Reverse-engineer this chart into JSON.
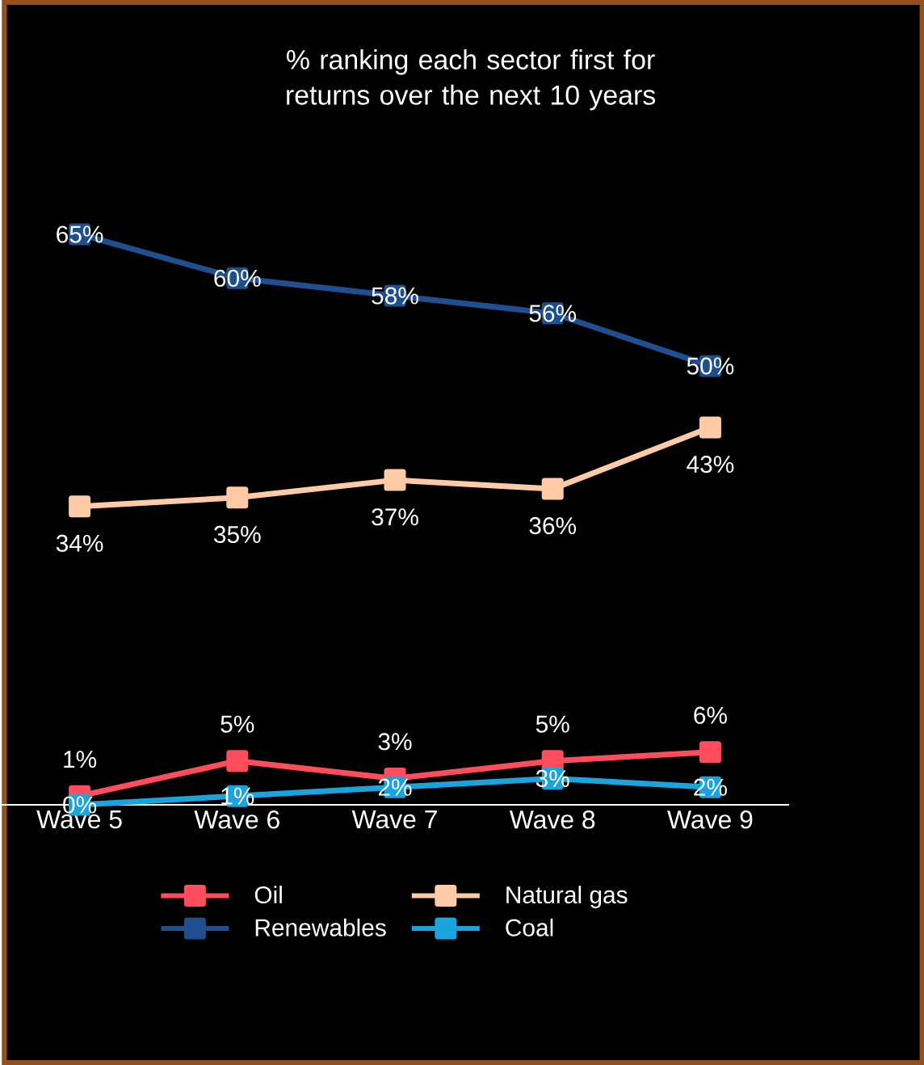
{
  "chart_data": {
    "type": "line",
    "title": "% ranking each sector first for returns over the next 10 years",
    "categories": [
      "Wave 5",
      "Wave 6",
      "Wave 7",
      "Wave 8",
      "Wave 9"
    ],
    "series": [
      {
        "name": "Oil",
        "color": "#ff4d5e",
        "values": [
          1,
          5,
          3,
          5,
          6
        ],
        "value_labels": [
          "1%",
          "5%",
          "3%",
          "5%",
          "6%"
        ]
      },
      {
        "name": "Natural gas",
        "color": "#ffcaa6",
        "values": [
          34,
          35,
          37,
          36,
          43
        ],
        "value_labels": [
          "34%",
          "35%",
          "37%",
          "36%",
          "43%"
        ]
      },
      {
        "name": "Renewables",
        "color": "#1f4f8f",
        "values": [
          65,
          60,
          58,
          56,
          50
        ],
        "value_labels": [
          "65%",
          "60%",
          "58%",
          "56%",
          "50%"
        ]
      },
      {
        "name": "Coal",
        "color": "#1aa3dd",
        "values": [
          0,
          1,
          2,
          3,
          2
        ],
        "value_labels": [
          "0%",
          "1%",
          "2%",
          "3%",
          "2%"
        ]
      }
    ],
    "tick_labels": "x",
    "marker": "square",
    "legend": "bottom",
    "grid": false
  }
}
